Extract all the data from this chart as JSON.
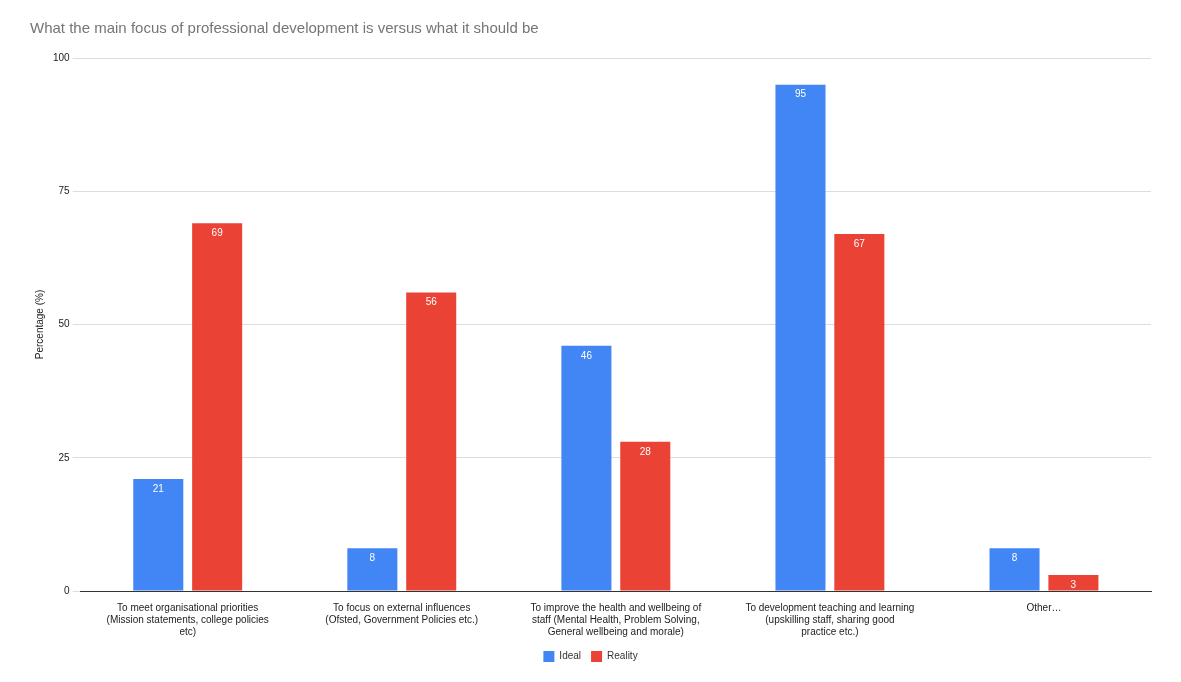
{
  "chart_data": {
    "type": "bar",
    "title": "What the main focus of professional development is versus what it should be",
    "ylabel": "Percentage (%)",
    "categories": [
      "To meet organisational priorities (Mission statements, college policies etc)",
      "To focus on external influences (Ofsted, Government Policies etc.)",
      "To improve the health and wellbeing of staff (Mental Health, Problem Solving, General wellbeing and morale)",
      "To development teaching and learning (upskilling staff, sharing good practice etc.)",
      "Other…"
    ],
    "series": [
      {
        "name": "Ideal",
        "color": "#4285f4",
        "values": [
          21,
          8,
          46,
          95,
          8
        ]
      },
      {
        "name": "Reality",
        "color": "#ea4335",
        "values": [
          69,
          56,
          28,
          67,
          3
        ]
      }
    ],
    "ylim": [
      0,
      100
    ],
    "yticks": [
      0,
      25,
      50,
      75,
      100
    ],
    "grid": "y",
    "legend": "bottom",
    "data_labels": true
  }
}
